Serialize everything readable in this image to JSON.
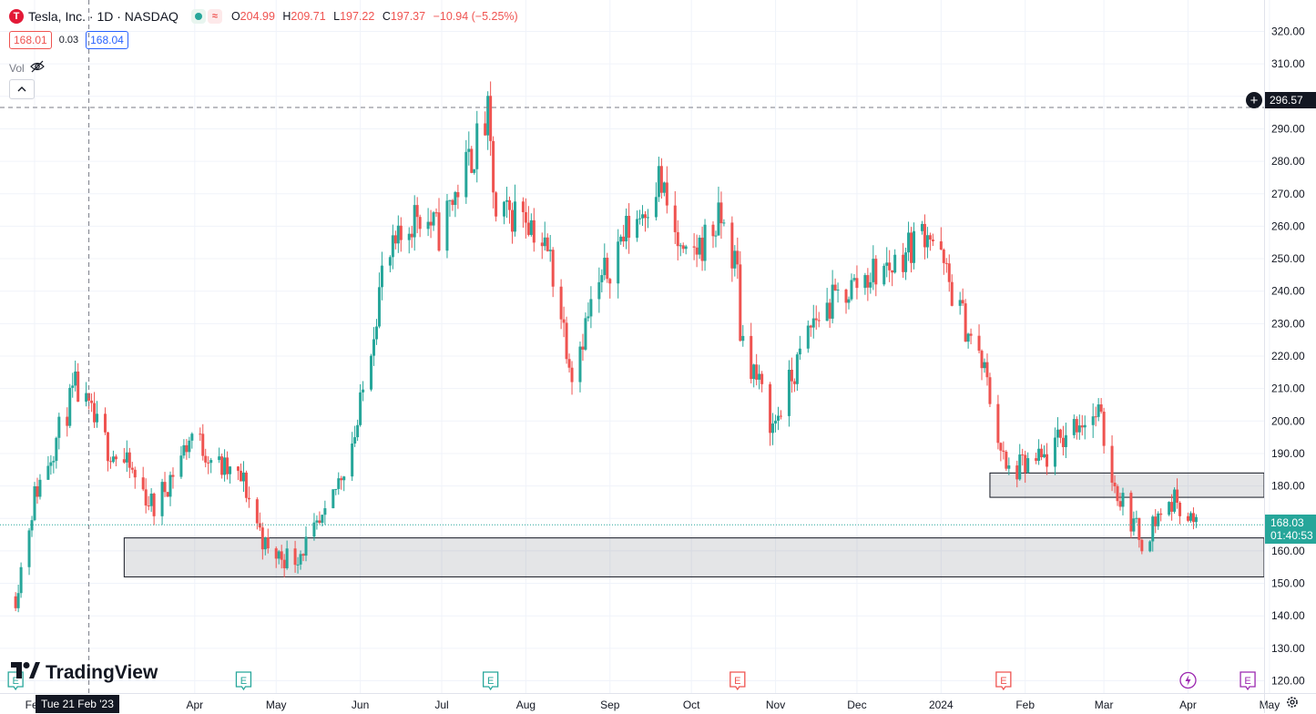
{
  "header": {
    "symbol_logo": "T",
    "title": "Tesla, Inc. · 1D · NASDAQ",
    "market_status_icon": "green-dot-icon",
    "realtime_icon": "≈",
    "ohlc": {
      "o_label": "O",
      "o_value": "204.99",
      "h_label": "H",
      "h_value": "209.71",
      "l_label": "L",
      "l_value": "197.22",
      "c_label": "C",
      "c_value": "197.37",
      "change": "−10.94 (−5.25%)"
    },
    "colors": {
      "down": "#ef5350",
      "up": "#26a69a"
    }
  },
  "quote": {
    "bid": "168.01",
    "spread": "0.03",
    "ask": "168.04"
  },
  "volume": {
    "label": "Vol",
    "icon": "eye-off-icon"
  },
  "collapse_icon": "chevron-up-icon",
  "brand": {
    "name": "TradingView"
  },
  "crosshair": {
    "date": "Tue 21 Feb '23",
    "price": "296.57"
  },
  "last_price": {
    "price": "168.03",
    "countdown": "01:40:53"
  },
  "chart_data": {
    "type": "candlestick",
    "title": "Tesla, Inc. · 1D · NASDAQ",
    "ylim": [
      115,
      325
    ],
    "y_ticks": [
      "120.00",
      "130.00",
      "140.00",
      "150.00",
      "160.00",
      "170.00",
      "180.00",
      "190.00",
      "200.00",
      "210.00",
      "220.00",
      "230.00",
      "240.00",
      "250.00",
      "260.00",
      "270.00",
      "280.00",
      "290.00",
      "300.00",
      "310.00",
      "320.00"
    ],
    "x_axis": {
      "labels": [
        "Feb",
        "Apr",
        "May",
        "Jun",
        "Jul",
        "Aug",
        "Sep",
        "Oct",
        "Nov",
        "Dec",
        "2024",
        "Feb",
        "Mar",
        "Apr",
        "May"
      ],
      "start_date": "2023-02-01",
      "label_dates": [
        "2023-02-01",
        "2023-04-01",
        "2023-05-01",
        "2023-06-01",
        "2023-07-01",
        "2023-08-01",
        "2023-09-01",
        "2023-10-01",
        "2023-11-01",
        "2023-12-01",
        "2024-01-01",
        "2024-02-01",
        "2024-03-01",
        "2024-04-01",
        "2024-05-01"
      ]
    },
    "anchors": [
      [
        "2023-02-01",
        177
      ],
      [
        "2023-02-16",
        210
      ],
      [
        "2023-02-28",
        192
      ],
      [
        "2023-03-08",
        185
      ],
      [
        "2023-03-17",
        173
      ],
      [
        "2023-03-31",
        196
      ],
      [
        "2023-04-10",
        186
      ],
      [
        "2023-04-19",
        181
      ],
      [
        "2023-04-28",
        159
      ],
      [
        "2023-05-08",
        158
      ],
      [
        "2023-05-19",
        169
      ],
      [
        "2023-05-31",
        199
      ],
      [
        "2023-06-09",
        245
      ],
      [
        "2023-06-22",
        265
      ],
      [
        "2023-06-30",
        258
      ],
      [
        "2023-07-10",
        278
      ],
      [
        "2023-07-18",
        293
      ],
      [
        "2023-07-21",
        261
      ],
      [
        "2023-07-31",
        266
      ],
      [
        "2023-08-10",
        250
      ],
      [
        "2023-08-18",
        216
      ],
      [
        "2023-08-25",
        235
      ],
      [
        "2023-09-05",
        256
      ],
      [
        "2023-09-13",
        265
      ],
      [
        "2023-09-19",
        275
      ],
      [
        "2023-09-28",
        248
      ],
      [
        "2023-10-05",
        255
      ],
      [
        "2023-10-12",
        262
      ],
      [
        "2023-10-18",
        246
      ],
      [
        "2023-10-19",
        228
      ],
      [
        "2023-10-31",
        198
      ],
      [
        "2023-11-08",
        215
      ],
      [
        "2023-11-15",
        231
      ],
      [
        "2023-11-24",
        238
      ],
      [
        "2023-12-05",
        245
      ],
      [
        "2023-12-14",
        248
      ],
      [
        "2023-12-27",
        260
      ],
      [
        "2024-01-05",
        240
      ],
      [
        "2024-01-17",
        215
      ],
      [
        "2024-01-25",
        184
      ],
      [
        "2024-02-08",
        188
      ],
      [
        "2024-02-20",
        200
      ],
      [
        "2024-02-28",
        202
      ],
      [
        "2024-03-05",
        180
      ],
      [
        "2024-03-15",
        163
      ],
      [
        "2024-03-22",
        172
      ],
      [
        "2024-03-28",
        176
      ],
      [
        "2024-04-04",
        167
      ]
    ],
    "zones": [
      {
        "from": "2023-03-06",
        "to": "2024-05-15",
        "low": 152,
        "high": 164
      },
      {
        "from": "2024-01-19",
        "to": "2024-05-15",
        "low": 176.5,
        "high": 184
      }
    ],
    "crosshair": {
      "date": "2023-02-21",
      "price": 296.57
    },
    "last_price": 168.03,
    "event_markers": [
      {
        "label": "E",
        "date": "2023-01-25",
        "type": "earnings",
        "color": "#26a69a"
      },
      {
        "label": "E",
        "date": "2023-04-19",
        "type": "earnings",
        "color": "#26a69a"
      },
      {
        "label": "E",
        "date": "2023-07-19",
        "type": "earnings",
        "color": "#26a69a"
      },
      {
        "label": "E",
        "date": "2023-10-18",
        "type": "earnings",
        "color": "#ef5350"
      },
      {
        "label": "E",
        "date": "2024-01-24",
        "type": "earnings",
        "color": "#ef5350"
      },
      {
        "label": "⚡",
        "date": "2024-04-01",
        "type": "split",
        "color": "#9c27b0"
      },
      {
        "label": "E",
        "date": "2024-04-23",
        "type": "earnings",
        "color": "#9c27b0"
      }
    ]
  }
}
